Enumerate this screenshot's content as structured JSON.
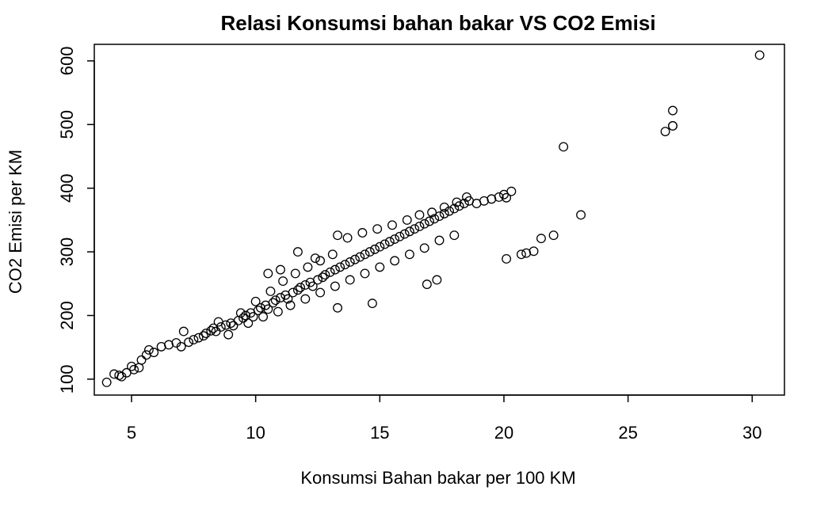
{
  "chart_data": {
    "type": "scatter",
    "title": "Relasi Konsumsi bahan bakar VS CO2 Emisi",
    "xlabel": "Konsumsi Bahan bakar per 100 KM",
    "ylabel": "CO2 Emisi per KM",
    "xlim": [
      3.5,
      31.3
    ],
    "ylim": [
      75,
      626
    ],
    "xticks": [
      5,
      10,
      15,
      20,
      25,
      30
    ],
    "yticks": [
      100,
      200,
      300,
      400,
      500,
      600
    ],
    "grid": false,
    "legend": "none",
    "marker": "open-circle",
    "points": [
      [
        4.0,
        95
      ],
      [
        4.3,
        108
      ],
      [
        4.5,
        106
      ],
      [
        4.6,
        104
      ],
      [
        4.8,
        110
      ],
      [
        5.0,
        120
      ],
      [
        5.1,
        115
      ],
      [
        5.3,
        118
      ],
      [
        5.4,
        130
      ],
      [
        5.6,
        138
      ],
      [
        5.7,
        146
      ],
      [
        5.9,
        142
      ],
      [
        6.2,
        151
      ],
      [
        6.5,
        154
      ],
      [
        6.8,
        157
      ],
      [
        7.0,
        151
      ],
      [
        7.1,
        175
      ],
      [
        7.3,
        158
      ],
      [
        7.5,
        162
      ],
      [
        7.7,
        165
      ],
      [
        7.9,
        168
      ],
      [
        8.0,
        172
      ],
      [
        8.2,
        176
      ],
      [
        8.3,
        180
      ],
      [
        8.4,
        175
      ],
      [
        8.6,
        182
      ],
      [
        8.8,
        185
      ],
      [
        9.0,
        188
      ],
      [
        9.1,
        184
      ],
      [
        9.3,
        192
      ],
      [
        9.5,
        196
      ],
      [
        9.6,
        200
      ],
      [
        9.8,
        204
      ],
      [
        9.9,
        198
      ],
      [
        10.1,
        208
      ],
      [
        10.2,
        212
      ],
      [
        10.4,
        216
      ],
      [
        10.5,
        210
      ],
      [
        10.7,
        220
      ],
      [
        10.8,
        224
      ],
      [
        11.0,
        228
      ],
      [
        11.2,
        232
      ],
      [
        11.3,
        226
      ],
      [
        11.5,
        236
      ],
      [
        11.7,
        240
      ],
      [
        11.8,
        244
      ],
      [
        12.0,
        248
      ],
      [
        12.2,
        252
      ],
      [
        12.3,
        246
      ],
      [
        12.5,
        256
      ],
      [
        12.7,
        260
      ],
      [
        12.8,
        264
      ],
      [
        13.0,
        268
      ],
      [
        13.2,
        272
      ],
      [
        13.4,
        276
      ],
      [
        13.6,
        280
      ],
      [
        13.8,
        284
      ],
      [
        14.0,
        288
      ],
      [
        14.2,
        292
      ],
      [
        14.4,
        296
      ],
      [
        14.6,
        300
      ],
      [
        14.8,
        304
      ],
      [
        15.0,
        308
      ],
      [
        15.2,
        312
      ],
      [
        15.4,
        316
      ],
      [
        15.6,
        320
      ],
      [
        15.8,
        324
      ],
      [
        16.0,
        328
      ],
      [
        16.2,
        332
      ],
      [
        16.4,
        336
      ],
      [
        16.6,
        340
      ],
      [
        16.8,
        344
      ],
      [
        17.0,
        348
      ],
      [
        17.2,
        352
      ],
      [
        17.4,
        356
      ],
      [
        17.6,
        360
      ],
      [
        17.8,
        364
      ],
      [
        18.0,
        368
      ],
      [
        18.2,
        372
      ],
      [
        18.4,
        376
      ],
      [
        18.6,
        380
      ],
      [
        18.9,
        376
      ],
      [
        19.2,
        380
      ],
      [
        19.5,
        383
      ],
      [
        19.8,
        386
      ],
      [
        20.0,
        390
      ],
      [
        20.1,
        385
      ],
      [
        20.3,
        395
      ],
      [
        8.5,
        190
      ],
      [
        9.4,
        204
      ],
      [
        10.0,
        222
      ],
      [
        10.6,
        238
      ],
      [
        11.1,
        254
      ],
      [
        11.6,
        266
      ],
      [
        12.1,
        276
      ],
      [
        12.6,
        286
      ],
      [
        13.1,
        296
      ],
      [
        13.3,
        326
      ],
      [
        13.7,
        322
      ],
      [
        14.3,
        330
      ],
      [
        14.9,
        336
      ],
      [
        15.5,
        342
      ],
      [
        16.1,
        350
      ],
      [
        16.6,
        358
      ],
      [
        17.1,
        362
      ],
      [
        17.6,
        370
      ],
      [
        18.1,
        378
      ],
      [
        18.5,
        386
      ],
      [
        10.5,
        266
      ],
      [
        11.0,
        272
      ],
      [
        11.7,
        300
      ],
      [
        12.4,
        290
      ],
      [
        8.9,
        170
      ],
      [
        9.7,
        188
      ],
      [
        10.3,
        198
      ],
      [
        10.9,
        206
      ],
      [
        11.4,
        216
      ],
      [
        12.0,
        226
      ],
      [
        12.6,
        236
      ],
      [
        13.2,
        246
      ],
      [
        13.8,
        256
      ],
      [
        14.4,
        266
      ],
      [
        15.0,
        276
      ],
      [
        15.6,
        286
      ],
      [
        16.2,
        296
      ],
      [
        16.8,
        306
      ],
      [
        17.4,
        318
      ],
      [
        18.0,
        326
      ],
      [
        13.3,
        212
      ],
      [
        14.7,
        219
      ],
      [
        16.9,
        249
      ],
      [
        17.3,
        256
      ],
      [
        20.1,
        289
      ],
      [
        20.7,
        296
      ],
      [
        20.9,
        298
      ],
      [
        21.2,
        301
      ],
      [
        21.5,
        321
      ],
      [
        22.0,
        326
      ],
      [
        23.1,
        358
      ],
      [
        22.4,
        465
      ],
      [
        26.5,
        489
      ],
      [
        26.8,
        498
      ],
      [
        26.8,
        498
      ],
      [
        26.8,
        522
      ],
      [
        30.3,
        609
      ]
    ]
  }
}
